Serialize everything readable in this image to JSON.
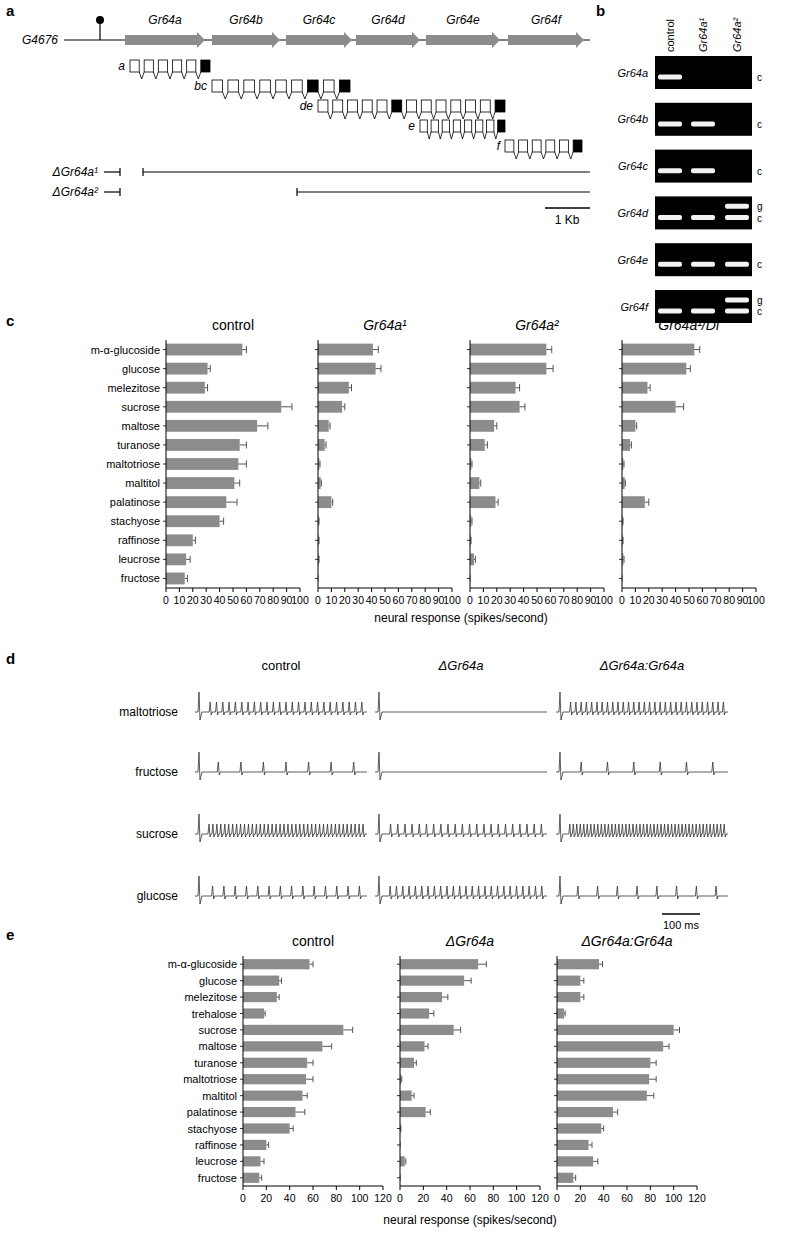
{
  "panels": {
    "a": {
      "letter": "a",
      "locus": "G4676",
      "genes": [
        "Gr64a",
        "Gr64b",
        "Gr64c",
        "Gr64d",
        "Gr64e",
        "Gr64f"
      ],
      "transcripts": [
        "a",
        "bc",
        "de",
        "e",
        "f"
      ],
      "deletions": [
        "ΔGr64a¹",
        "ΔGr64a²"
      ],
      "scale_bar": "1 Kb"
    },
    "b": {
      "letter": "b",
      "lanes": [
        "control",
        "Gr64a¹",
        "Gr64a²"
      ],
      "rows": [
        {
          "gene": "Gr64a",
          "bands": [
            [
              "c"
            ],
            [],
            []
          ],
          "labels": [
            "c"
          ]
        },
        {
          "gene": "Gr64b",
          "bands": [
            [
              "c"
            ],
            [
              "c"
            ],
            []
          ],
          "labels": [
            "c"
          ]
        },
        {
          "gene": "Gr64c",
          "bands": [
            [
              "c"
            ],
            [
              "c"
            ],
            []
          ],
          "labels": [
            "c"
          ]
        },
        {
          "gene": "Gr64d",
          "bands": [
            [
              "c"
            ],
            [
              "c"
            ],
            [
              "g",
              "c"
            ]
          ],
          "labels": [
            "g",
            "c"
          ]
        },
        {
          "gene": "Gr64e",
          "bands": [
            [
              "c"
            ],
            [
              "c"
            ],
            [
              "c"
            ]
          ],
          "labels": [
            "c"
          ]
        },
        {
          "gene": "Gr64f",
          "bands": [
            [
              "c"
            ],
            [
              "c"
            ],
            [
              "g",
              "c"
            ]
          ],
          "labels": [
            "g",
            "c"
          ]
        }
      ]
    },
    "c": {
      "letter": "c",
      "xlabel": "neural response (spikes/second)"
    },
    "d": {
      "letter": "d",
      "columns": [
        "control",
        "ΔGr64a",
        "ΔGr64a:Gr64a"
      ],
      "rows": [
        "maltotriose",
        "fructose",
        "sucrose",
        "glucose"
      ],
      "spikes": [
        [
          25,
          0,
          30
        ],
        [
          7,
          0,
          6
        ],
        [
          40,
          22,
          45
        ],
        [
          14,
          25,
          8
        ]
      ],
      "scale_bar": "100 ms"
    },
    "e": {
      "letter": "e",
      "xlabel": "neural response (spikes/second)"
    }
  },
  "chart_data": [
    {
      "type": "bar",
      "orientation": "horizontal",
      "title": "control",
      "categories": [
        "m-α-glucoside",
        "glucose",
        "melezitose",
        "sucrose",
        "maltose",
        "turanose",
        "maltotriose",
        "maltitol",
        "palatinose",
        "stachyose",
        "raffinose",
        "leucrose",
        "fructose"
      ],
      "values": [
        57,
        31,
        29,
        86,
        68,
        55,
        54,
        51,
        45,
        40,
        20,
        15,
        14
      ],
      "errors": [
        3,
        2,
        2,
        8,
        8,
        5,
        6,
        4,
        8,
        3,
        2,
        3,
        2
      ],
      "color": "#8c8c8c",
      "xlim": [
        0,
        100
      ],
      "xticks": [
        0,
        10,
        20,
        30,
        40,
        50,
        60,
        70,
        80,
        90,
        100
      ]
    },
    {
      "type": "bar",
      "orientation": "horizontal",
      "title": "Gr64a¹",
      "tick_labels": "x",
      "categories": [
        "m-α-glucoside",
        "glucose",
        "melezitose",
        "sucrose",
        "maltose",
        "turanose",
        "maltotriose",
        "maltitol",
        "palatinose",
        "stachyose",
        "raffinose",
        "leucrose",
        "fructose"
      ],
      "values": [
        41,
        43,
        23,
        18,
        8,
        5,
        1,
        2,
        10,
        0.5,
        0.5,
        0.5,
        0
      ],
      "errors": [
        4,
        4,
        2,
        2,
        1,
        1,
        0.5,
        0.5,
        1,
        0.3,
        0.3,
        0.3,
        0
      ],
      "color": "#8c8c8c",
      "xlim": [
        0,
        100
      ],
      "xticks": [
        0,
        10,
        20,
        30,
        40,
        50,
        60,
        70,
        80,
        90,
        100
      ]
    },
    {
      "type": "bar",
      "orientation": "horizontal",
      "title": "Gr64a²",
      "tick_labels": "x",
      "categories": [
        "m-α-glucoside",
        "glucose",
        "melezitose",
        "sucrose",
        "maltose",
        "turanose",
        "maltotriose",
        "maltitol",
        "palatinose",
        "stachyose",
        "raffinose",
        "leucrose",
        "fructose"
      ],
      "values": [
        57,
        57,
        34,
        37,
        18,
        11,
        1,
        7,
        19,
        1,
        0.5,
        3,
        0
      ],
      "errors": [
        4,
        5,
        3,
        4,
        2,
        2,
        0.5,
        1,
        2,
        0.5,
        0.3,
        1,
        0
      ],
      "color": "#8c8c8c",
      "xlim": [
        0,
        100
      ],
      "xticks": [
        0,
        10,
        20,
        30,
        40,
        50,
        60,
        70,
        80,
        90,
        100
      ]
    },
    {
      "type": "bar",
      "orientation": "horizontal",
      "title": "Gr64a¹/Df",
      "tick_labels": "x",
      "categories": [
        "m-α-glucoside",
        "glucose",
        "melezitose",
        "sucrose",
        "maltose",
        "turanose",
        "maltotriose",
        "maltitol",
        "palatinose",
        "stachyose",
        "raffinose",
        "leucrose",
        "fructose"
      ],
      "values": [
        54,
        48,
        19,
        40,
        10,
        6,
        1,
        2,
        17,
        0.5,
        0.5,
        1,
        0
      ],
      "errors": [
        4,
        3,
        2,
        6,
        1,
        1,
        0.5,
        0.5,
        3,
        0.3,
        0.3,
        0.5,
        0
      ],
      "color": "#8c8c8c",
      "xlim": [
        0,
        100
      ],
      "xticks": [
        0,
        10,
        20,
        30,
        40,
        50,
        60,
        70,
        80,
        90,
        100
      ]
    },
    {
      "type": "bar",
      "orientation": "horizontal",
      "title": "control",
      "categories": [
        "m-α-glucoside",
        "glucose",
        "melezitose",
        "trehalose",
        "sucrose",
        "maltose",
        "turanose",
        "maltotriose",
        "maltitol",
        "palatinose",
        "stachyose",
        "raffinose",
        "leucrose",
        "fructose"
      ],
      "values": [
        57,
        31,
        29,
        18,
        86,
        68,
        55,
        54,
        51,
        45,
        40,
        20,
        15,
        14
      ],
      "errors": [
        3,
        2,
        2,
        1,
        8,
        8,
        5,
        6,
        4,
        8,
        3,
        2,
        3,
        2
      ],
      "color": "#8c8c8c",
      "xlim": [
        0,
        120
      ],
      "xticks": [
        0,
        20,
        40,
        60,
        80,
        100,
        120
      ]
    },
    {
      "type": "bar",
      "orientation": "horizontal",
      "title": "ΔGr64a",
      "tick_labels": "x",
      "categories": [
        "m-α-glucoside",
        "glucose",
        "melezitose",
        "trehalose",
        "sucrose",
        "maltose",
        "turanose",
        "maltotriose",
        "maltitol",
        "palatinose",
        "stachyose",
        "raffinose",
        "leucrose",
        "fructose"
      ],
      "values": [
        67,
        55,
        36,
        25,
        46,
        21,
        12,
        1,
        10,
        22,
        0.5,
        0,
        4,
        0
      ],
      "errors": [
        7,
        6,
        5,
        4,
        6,
        3,
        2,
        0.5,
        2,
        4,
        0.3,
        0,
        1,
        0
      ],
      "color": "#8c8c8c",
      "xlim": [
        0,
        120
      ],
      "xticks": [
        0,
        20,
        40,
        60,
        80,
        100,
        120
      ]
    },
    {
      "type": "bar",
      "orientation": "horizontal",
      "title": "ΔGr64a:Gr64a",
      "tick_labels": "x",
      "categories": [
        "m-α-glucoside",
        "glucose",
        "melezitose",
        "trehalose",
        "sucrose",
        "maltose",
        "turanose",
        "maltotriose",
        "maltitol",
        "palatinose",
        "stachyose",
        "raffinose",
        "leucrose",
        "fructose"
      ],
      "values": [
        36,
        20,
        20,
        6,
        100,
        91,
        80,
        79,
        77,
        48,
        38,
        27,
        31,
        14
      ],
      "errors": [
        3,
        3,
        3,
        1,
        5,
        5,
        5,
        6,
        6,
        4,
        2,
        3,
        4,
        2
      ],
      "color": "#8c8c8c",
      "xlim": [
        0,
        120
      ],
      "xticks": [
        0,
        20,
        40,
        60,
        80,
        100,
        120
      ]
    }
  ]
}
